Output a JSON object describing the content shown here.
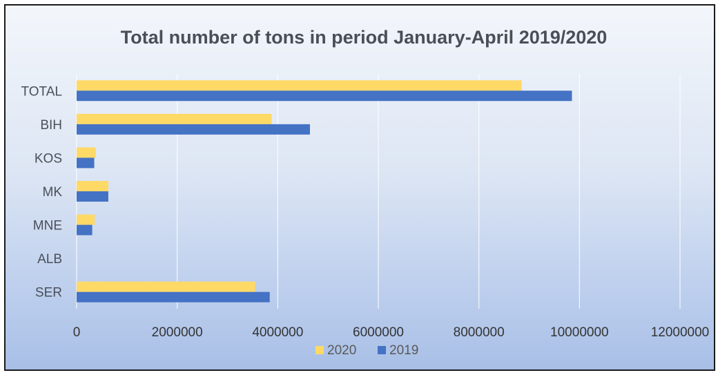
{
  "chart_data": {
    "type": "bar",
    "orientation": "horizontal",
    "title": "Total number of tons in period January-April 2019/2020",
    "xlabel": "",
    "ylabel": "",
    "categories": [
      "TOTAL",
      "BIH",
      "KOS",
      "MK",
      "MNE",
      "ALB",
      "SER"
    ],
    "series": [
      {
        "name": "2020",
        "color": "#ffd966",
        "values": [
          8850000,
          3880000,
          380000,
          630000,
          360000,
          0,
          3550000
        ]
      },
      {
        "name": "2019",
        "color": "#4472c4",
        "values": [
          9850000,
          4640000,
          350000,
          630000,
          310000,
          0,
          3840000
        ]
      }
    ],
    "xlim": [
      0,
      12000000
    ],
    "xticks": [
      "0",
      "2000000",
      "4000000",
      "6000000",
      "8000000",
      "10000000",
      "12000000"
    ],
    "grid": true,
    "legend_position": "bottom"
  }
}
